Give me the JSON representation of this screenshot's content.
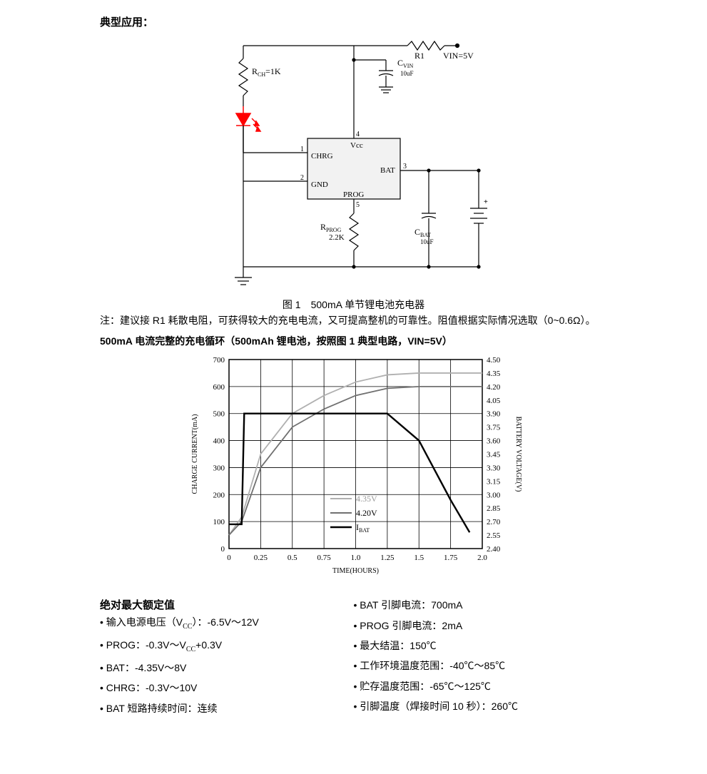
{
  "title": "典型应用：",
  "circuit": {
    "r1": "R1",
    "vin": "VIN=5V",
    "rch": "R",
    "rch_sub": "CH",
    "rch_val": "=1K",
    "cvin": "C",
    "cvin_sub": "VIN",
    "cvin_val": "10uF",
    "chip_vcc": "Vcc",
    "chip_chrg": "CHRG",
    "chip_bat": "BAT",
    "chip_gnd": "GND",
    "chip_prog": "PROG",
    "pin1": "1",
    "pin2": "2",
    "pin3": "3",
    "pin4": "4",
    "pin5": "5",
    "rprog": "R",
    "rprog_sub": "PROG",
    "rprog_val": "2.2K",
    "cbat": "C",
    "cbat_sub": "BAT",
    "cbat_val": "10uF",
    "led_color": "#ff0000",
    "chip_fill": "#f2f2f2"
  },
  "caption": "图 1　500mA 单节锂电池充电器",
  "note": "注：建议接 R1 耗散电阻，可获得较大的充电电流，又可提高整机的可靠性。阻值根据实际情况选取（0~0.6Ω）。",
  "chart_title": "500mA 电流完整的充电循环（500mAh 锂电池，按照图 1 典型电路，VIN=5V）",
  "chart": {
    "y1_label": "CHARGE CURRENT(mA)",
    "y2_label": "BATTERY VOLTAGE(V)",
    "x_label": "TIME(HOURS)",
    "y1_min": 0,
    "y1_max": 700,
    "y1_step": 100,
    "y1_ticks": [
      "0",
      "100",
      "200",
      "300",
      "400",
      "500",
      "600",
      "700"
    ],
    "y2_min": 2.4,
    "y2_max": 4.5,
    "y2_step": 0.15,
    "y2_ticks": [
      "2.40",
      "2.55",
      "2.70",
      "2.85",
      "3.00",
      "3.15",
      "3.30",
      "3.45",
      "3.60",
      "3.75",
      "3.90",
      "4.05",
      "4.20",
      "4.35",
      "4.50"
    ],
    "x_min": 0,
    "x_max": 2.0,
    "x_step": 0.25,
    "x_ticks": [
      "0",
      "0.25",
      "0.5",
      "0.75",
      "1.0",
      "1.25",
      "1.5",
      "1.75",
      "2.0"
    ],
    "legend": {
      "v435": "4.35V",
      "v435_color": "#b0b0b0",
      "v420": "4.20V",
      "v420_color": "#707070",
      "ibat": "I",
      "ibat_sub": "BAT",
      "ibat_color": "#000000"
    },
    "series": {
      "ibat": [
        [
          0,
          90
        ],
        [
          0.1,
          90
        ],
        [
          0.12,
          500
        ],
        [
          1.25,
          500
        ],
        [
          1.5,
          400
        ],
        [
          1.75,
          180
        ],
        [
          1.9,
          60
        ]
      ],
      "v420": [
        [
          0,
          2.55
        ],
        [
          0.1,
          2.7
        ],
        [
          0.25,
          3.3
        ],
        [
          0.5,
          3.75
        ],
        [
          0.75,
          3.95
        ],
        [
          1.0,
          4.1
        ],
        [
          1.25,
          4.18
        ],
        [
          1.5,
          4.2
        ],
        [
          2.0,
          4.2
        ]
      ],
      "v435": [
        [
          0,
          2.55
        ],
        [
          0.1,
          2.75
        ],
        [
          0.25,
          3.45
        ],
        [
          0.5,
          3.9
        ],
        [
          0.75,
          4.1
        ],
        [
          1.0,
          4.25
        ],
        [
          1.25,
          4.33
        ],
        [
          1.5,
          4.35
        ],
        [
          2.0,
          4.35
        ]
      ]
    },
    "grid_color": "#000000",
    "line_width_light": 1.8,
    "line_width_heavy": 2.4,
    "font_size_axis": 11,
    "font_size_tick": 11
  },
  "ratings": {
    "header": "绝对最大额定值",
    "left": [
      {
        "pre": "输入电源电压（V",
        "sub": "CC",
        "post": "）：-6.5V～12V"
      },
      {
        "pre": "PROG：-0.3V～V",
        "sub": "CC",
        "post": "+0.3V"
      },
      {
        "pre": "BAT：-4.35V～8V",
        "sub": "",
        "post": ""
      },
      {
        "pre": "CHRG：-0.3V～10V",
        "sub": "",
        "post": ""
      },
      {
        "pre": "BAT 短路持续时间：连续",
        "sub": "",
        "post": ""
      }
    ],
    "right": [
      {
        "pre": "BAT 引脚电流：700mA",
        "sub": "",
        "post": ""
      },
      {
        "pre": "PROG 引脚电流：2mA",
        "sub": "",
        "post": ""
      },
      {
        "pre": "最大结温：150℃",
        "sub": "",
        "post": ""
      },
      {
        "pre": "工作环境温度范围：-40℃～85℃",
        "sub": "",
        "post": ""
      },
      {
        "pre": "贮存温度范围：-65℃～125℃",
        "sub": "",
        "post": ""
      },
      {
        "pre": "引脚温度（焊接时间 10 秒）：260℃",
        "sub": "",
        "post": ""
      }
    ]
  }
}
